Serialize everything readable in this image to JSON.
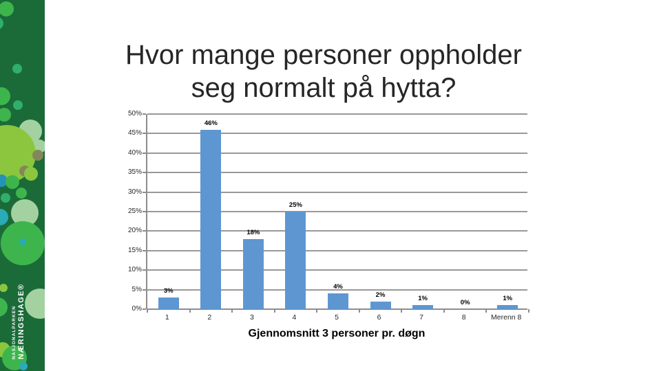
{
  "slide": {
    "title_line1": "Hvor mange personer oppholder",
    "title_line2": "seg normalt på hytta?",
    "caption": "Gjennomsnitt 3 personer pr. døgn"
  },
  "sidebar": {
    "logo_small": "NASJONALPARKEN",
    "logo_large": "NÆRINGSHAGE®",
    "background_color": "#1B6B39",
    "bubble_colors": [
      "#3DB54C",
      "#8CC63F",
      "#A3D2A0",
      "#29ABB8",
      "#2592B8",
      "#83885A",
      "#2FAE6E"
    ]
  },
  "chart_data": {
    "type": "bar",
    "categories": [
      "1",
      "2",
      "3",
      "4",
      "5",
      "6",
      "7",
      "8",
      "Merenn 8"
    ],
    "values": [
      3,
      46,
      18,
      25,
      4,
      2,
      1,
      0,
      1
    ],
    "data_labels": [
      "3%",
      "46%",
      "18%",
      "25%",
      "4%",
      "2%",
      "1%",
      "0%",
      "1%"
    ],
    "title": "",
    "xlabel": "",
    "ylabel": "",
    "ylim": [
      0,
      50
    ],
    "ytick_step": 5,
    "ytick_format": "{v}%",
    "grid": true,
    "legend": "none",
    "bar_color": "#5E96D2",
    "grid_color": "#989898",
    "axis_color": "#8C8C8C"
  }
}
